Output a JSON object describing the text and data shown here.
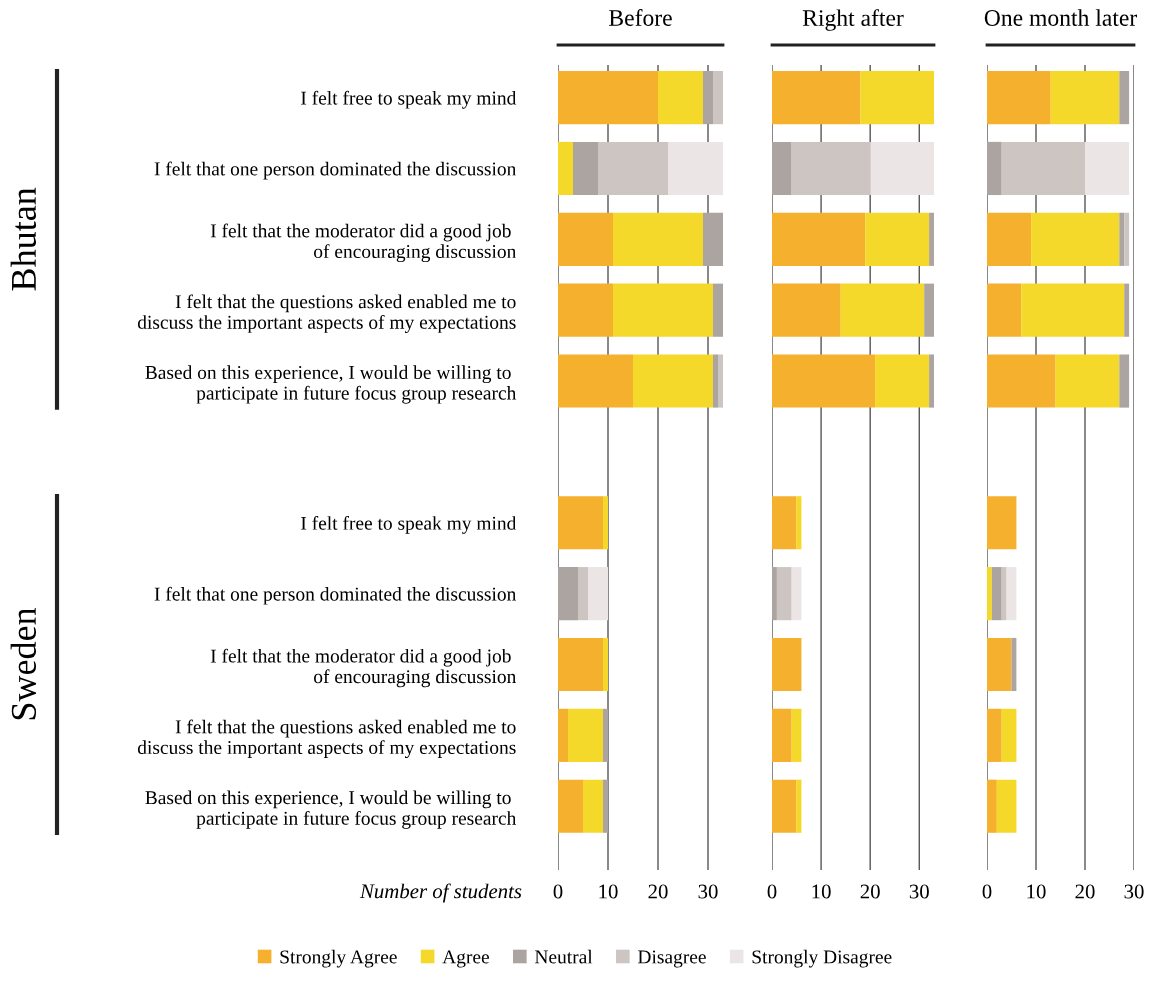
{
  "chart_data": [
    {
      "type": "bar",
      "orientation": "horizontal",
      "stacked": true,
      "title": "Before",
      "xlabel": "Number of students",
      "grid": "x",
      "legend": "bottom",
      "categories": [
        "I felt free to speak my mind",
        "I felt that one person dominated the discussion",
        "I felt that the moderator did a good job \nof encouraging discussion",
        "I felt that the questions asked enabled me to\ndiscuss the important aspects of my expectations",
        "Based on this experience, I would be willing to \nparticipate in future focus group research",
        null,
        "I felt free to speak my mind",
        "I felt that one person dominated the discussion",
        "I felt that the moderator did a good job \nof encouraging discussion",
        "I felt that the questions asked enabled me to\ndiscuss the important aspects of my expectations",
        "Based on this experience, I would be willing to \nparticipate in future focus group research"
      ],
      "annotations": [
        "Bhutan",
        "Sweden"
      ],
      "xlim": [
        0,
        33
      ],
      "xticks": [
        0,
        10,
        20,
        30
      ],
      "series": [
        {
          "name": "Strongly Agree",
          "color": "#f5b02e",
          "values": [
            20,
            0,
            11,
            11,
            15,
            null,
            9,
            0,
            9,
            2,
            5
          ]
        },
        {
          "name": "Agree",
          "color": "#f5d92a",
          "values": [
            9,
            3,
            18,
            20,
            16,
            null,
            1,
            0,
            1,
            7,
            4
          ]
        },
        {
          "name": "Neutral",
          "color": "#aca4a0",
          "values": [
            2,
            5,
            4,
            2,
            1,
            null,
            0,
            4,
            0,
            1,
            1
          ]
        },
        {
          "name": "Disagree",
          "color": "#ccc5c1",
          "values": [
            2,
            14,
            0,
            0,
            1,
            null,
            0,
            2,
            0,
            0,
            0
          ]
        },
        {
          "name": "Strongly Disagree",
          "color": "#ebe6e5",
          "values": [
            0,
            11,
            0,
            0,
            0,
            null,
            0,
            4,
            0,
            0,
            0
          ]
        }
      ]
    },
    {
      "type": "bar",
      "orientation": "horizontal",
      "stacked": true,
      "title": "Right after",
      "grid": "x",
      "tick_labels": "x",
      "xlim": [
        0,
        33
      ],
      "xticks": [
        0,
        10,
        20,
        30
      ],
      "series": [
        {
          "color": "#f5b02e",
          "values": [
            18,
            0,
            19,
            14,
            21,
            null,
            5,
            0,
            6,
            4,
            5
          ]
        },
        {
          "color": "#f5d92a",
          "values": [
            15,
            0,
            13,
            17,
            11,
            null,
            1,
            0,
            0,
            2,
            1
          ]
        },
        {
          "color": "#aca4a0",
          "values": [
            0,
            4,
            1,
            2,
            1,
            null,
            0,
            1,
            0,
            0,
            0
          ]
        },
        {
          "color": "#ccc5c1",
          "values": [
            0,
            16,
            0,
            0,
            0,
            null,
            0,
            3,
            0,
            0,
            0
          ]
        },
        {
          "color": "#ebe6e5",
          "values": [
            0,
            13,
            0,
            0,
            0,
            null,
            0,
            2,
            0,
            0,
            0
          ]
        }
      ]
    },
    {
      "type": "bar",
      "orientation": "horizontal",
      "stacked": true,
      "title": "One month later",
      "grid": "x",
      "tick_labels": "x",
      "xlim": [
        0,
        30
      ],
      "xticks": [
        0,
        10,
        20,
        30
      ],
      "series": [
        {
          "color": "#f5b02e",
          "values": [
            13,
            0,
            9,
            7,
            14,
            null,
            6,
            0,
            5,
            3,
            2
          ]
        },
        {
          "color": "#f5d92a",
          "values": [
            14,
            0,
            18,
            21,
            13,
            null,
            0,
            1,
            0,
            3,
            4
          ]
        },
        {
          "color": "#aca4a0",
          "values": [
            2,
            3,
            1,
            1,
            2,
            null,
            0,
            2,
            1,
            0,
            0
          ]
        },
        {
          "color": "#ccc5c1",
          "values": [
            0,
            17,
            1,
            0,
            0,
            null,
            0,
            1,
            0,
            0,
            0
          ]
        },
        {
          "color": "#ebe6e5",
          "values": [
            0,
            9,
            0,
            0,
            0,
            null,
            0,
            2,
            0,
            0,
            0
          ]
        }
      ]
    }
  ]
}
